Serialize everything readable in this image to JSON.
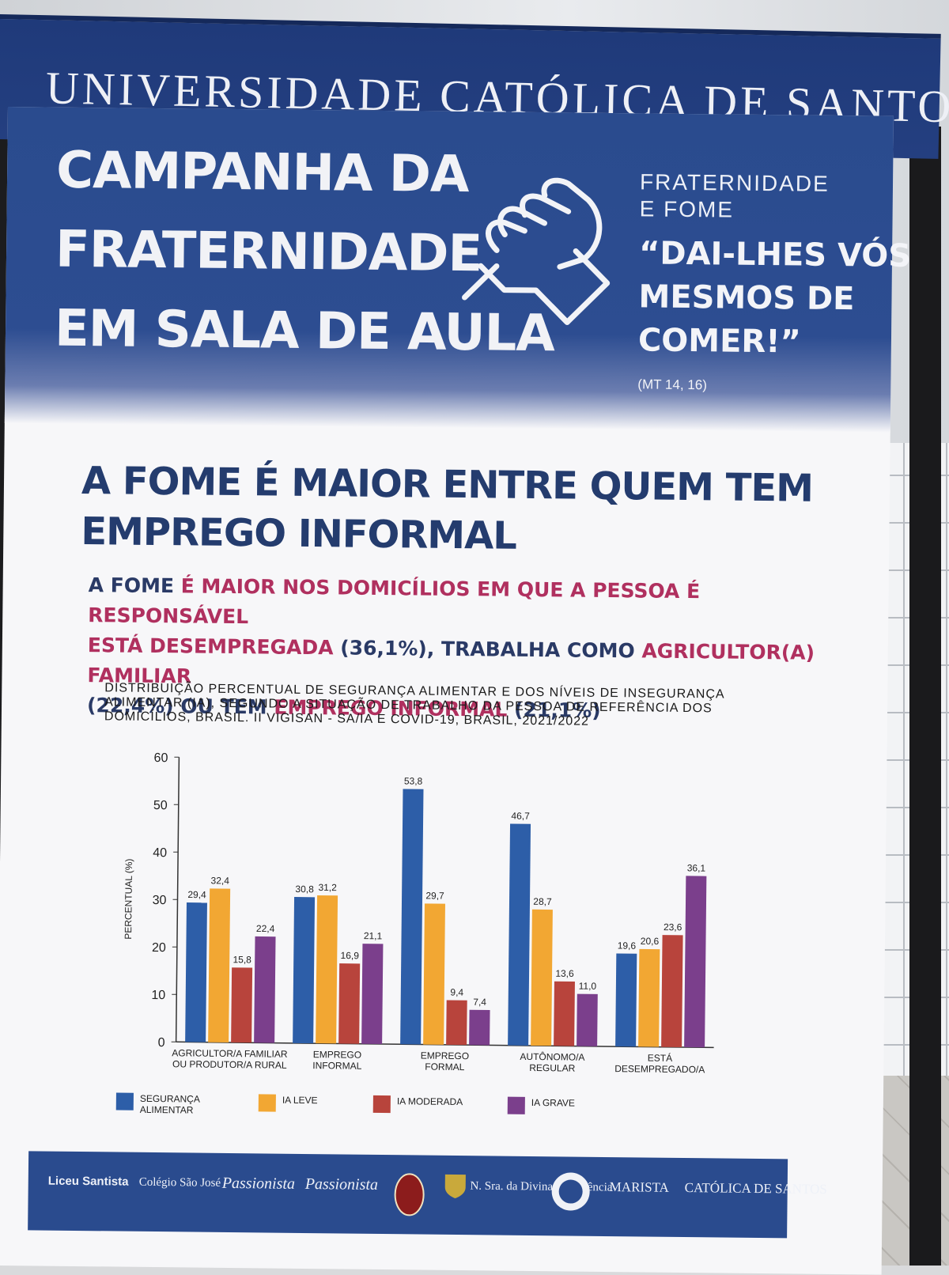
{
  "header": {
    "university": "UNIVERSIDADE CATÓLICA DE SANTOS"
  },
  "campaign": {
    "title_lines": [
      "CAMPANHA DA",
      "FRATERNIDADE",
      "EM SALA DE AULA"
    ],
    "theme_lines": [
      "FRATERNIDADE",
      "E FOME"
    ],
    "quote_lines": [
      "“DAI-LHES VÓS",
      "MESMOS DE",
      "COMER!”"
    ],
    "verse": "(MT 14, 16)"
  },
  "headline_lines": [
    "A FOME É MAIOR ENTRE QUEM TEM",
    "EMPREGO INFORMAL"
  ],
  "subtext": {
    "p1": "A FOME ",
    "p2": "É MAIOR NOS DOMICÍLIOS EM QUE A PESSOA É RESPONSÁVEL",
    "p3": "ESTÁ DESEMPREGADA",
    "p4": " (36,1%), TRABALHA COMO ",
    "p5": "AGRICULTOR(A) FAMILIAR",
    "p6": "(22,4%)  OU TEM ",
    "p7": "EMPREGO INFORMAL",
    "p8": " (21,1%)"
  },
  "caption_lines": [
    "DISTRIBUIÇÃO PERCENTUAL DE SEGURANÇA ALIMENTAR E DOS NÍVEIS DE INSEGURANÇA",
    "ALIMENTAR  (IA),  SEGUNDO A SITUAÇÃO DE TRABALHO DA PESSOA DE REFERÊNCIA  DOS",
    "DOMICÍLIOS, BRASIL. II VIGISAN - SA/IA E COVID-19, BRASIL, 2021/2022"
  ],
  "chart_data": {
    "type": "bar",
    "title": "",
    "xlabel": "",
    "ylabel": "PERCENTUAL (%)",
    "ylim": [
      0,
      60
    ],
    "yticks": [
      "0",
      "10",
      "20",
      "30",
      "40",
      "50",
      "60"
    ],
    "categories": [
      [
        "AGRICULTOR/A FAMILIAR",
        "OU PRODUTOR/A RURAL"
      ],
      [
        "EMPREGO",
        "INFORMAL"
      ],
      [
        "EMPREGO",
        "FORMAL"
      ],
      [
        "AUTÔNOMO/A",
        "REGULAR"
      ],
      [
        "ESTÁ",
        "DESEMPREGADO/A"
      ]
    ],
    "series": [
      {
        "name": "SEGURANÇA ALIMENTAR",
        "legend_lines": [
          "SEGURANÇA",
          "ALIMENTAR"
        ],
        "color": "#2d5ea8",
        "values": [
          29.4,
          30.8,
          53.8,
          46.7,
          19.6
        ],
        "labels": [
          "29,4",
          "30,8",
          "53,8",
          "46,7",
          "19,6"
        ]
      },
      {
        "name": "IA LEVE",
        "legend_lines": [
          "IA LEVE"
        ],
        "color": "#f2a733",
        "values": [
          32.4,
          31.2,
          29.7,
          28.7,
          20.6
        ],
        "labels": [
          "32,4",
          "31,2",
          "29,7",
          "28,7",
          "20,6"
        ]
      },
      {
        "name": "IA MODERADA",
        "legend_lines": [
          "IA MODERADA"
        ],
        "color": "#b8443c",
        "values": [
          15.8,
          16.9,
          9.4,
          13.6,
          23.6
        ],
        "labels": [
          "15,8",
          "16,9",
          "9,4",
          "13,6",
          "23,6"
        ]
      },
      {
        "name": "IA GRAVE",
        "legend_lines": [
          "IA GRAVE"
        ],
        "color": "#7b3f8c",
        "values": [
          22.4,
          21.1,
          7.4,
          11.0,
          36.1
        ],
        "labels": [
          "22,4",
          "21,1",
          "7,4",
          "11,0",
          "36,1"
        ]
      }
    ],
    "legend": "bottom",
    "grid": false
  },
  "footer": {
    "logos": [
      {
        "name": "logo-liceu",
        "text": "Liceu Santista"
      },
      {
        "name": "logo-sao-jose",
        "text": "Colégio São José"
      },
      {
        "name": "logo-passionista-sm",
        "text": "Passionista"
      },
      {
        "name": "logo-passionista-sg",
        "text": "Passionista"
      },
      {
        "name": "logo-diocese",
        "text": ""
      },
      {
        "name": "logo-providencia",
        "text": "N. Sra. da Divina Providência"
      },
      {
        "name": "logo-stella-maris",
        "text": ""
      },
      {
        "name": "logo-marista",
        "text": "MARISTA"
      },
      {
        "name": "logo-unisantos",
        "text": "CATÓLICA DE SANTOS"
      }
    ]
  }
}
